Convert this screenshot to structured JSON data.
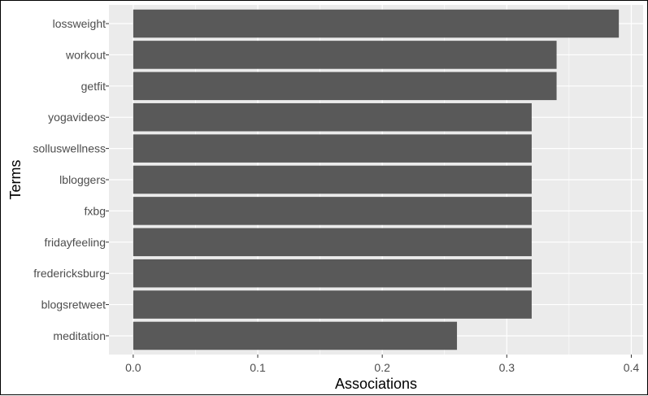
{
  "chart_data": {
    "type": "bar",
    "orientation": "horizontal",
    "categories": [
      "lossweight",
      "workout",
      "getfit",
      "yogavideos",
      "solluswellness",
      "lbloggers",
      "fxbg",
      "fridayfeeling",
      "fredericksburg",
      "blogsretweet",
      "meditation"
    ],
    "values": [
      0.39,
      0.34,
      0.34,
      0.32,
      0.32,
      0.32,
      0.32,
      0.32,
      0.32,
      0.32,
      0.26
    ],
    "xlabel": "Associations",
    "ylabel": "Terms",
    "xticks": [
      "0.0",
      "0.1",
      "0.2",
      "0.3",
      "0.4"
    ],
    "xlim": [
      -0.0195,
      0.4095
    ],
    "grid": true,
    "colors": {
      "panel": "#ebebeb",
      "grid_major": "#ffffff",
      "bar": "#595959",
      "tick_text": "#4d4d4d",
      "title_text": "#000000"
    }
  }
}
